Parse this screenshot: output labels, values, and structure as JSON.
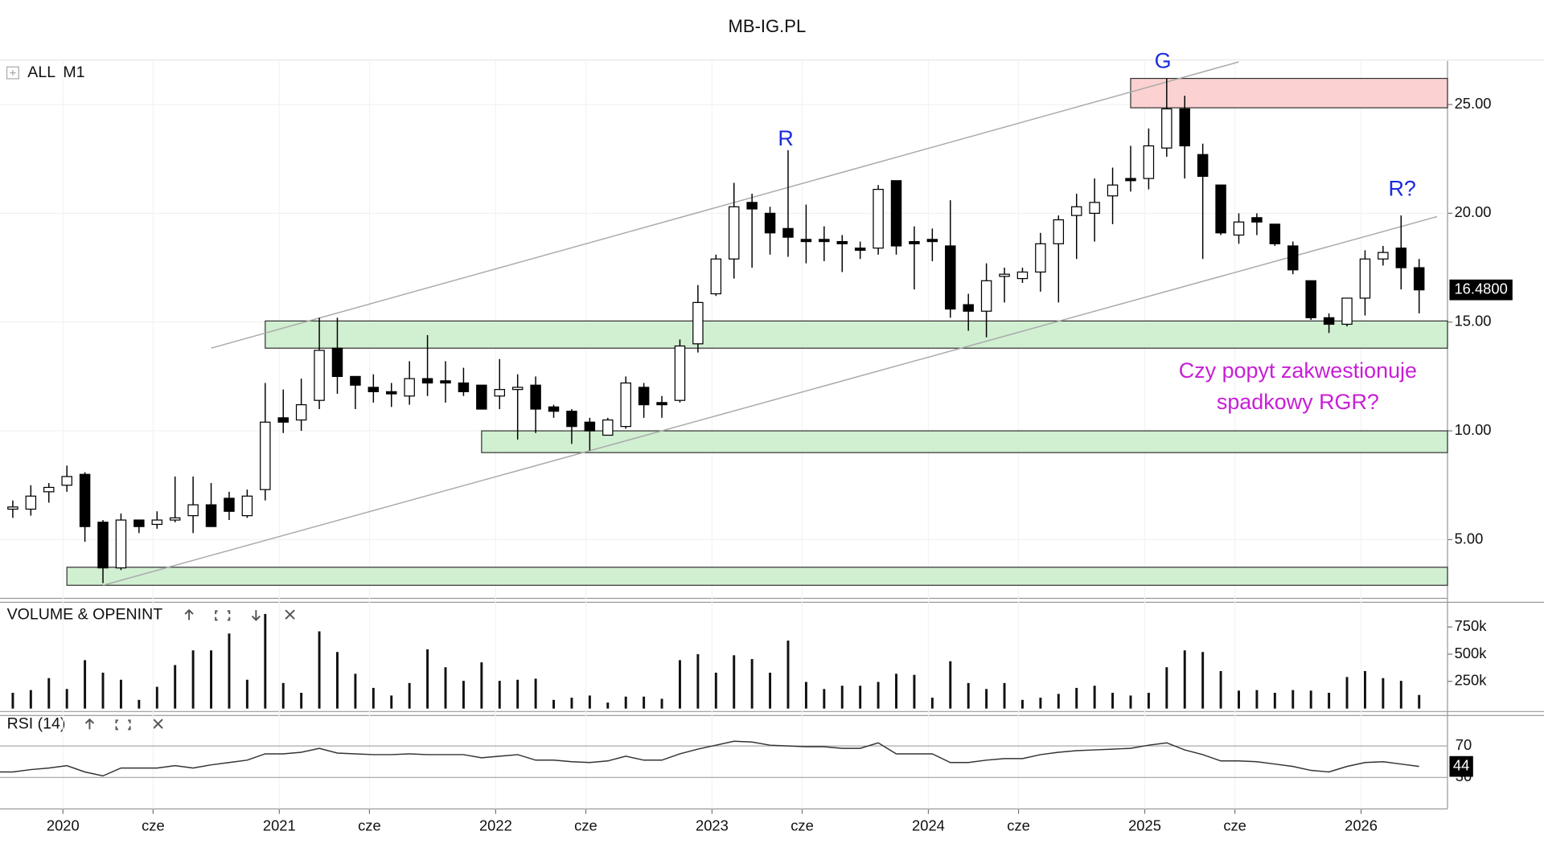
{
  "title": "MB-IG.PL",
  "instrument": {
    "scope": "ALL",
    "interval": "M1"
  },
  "chart_data": [
    {
      "type": "candlestick",
      "grid": true,
      "x": [
        "2019-10",
        "2019-11",
        "2019-12",
        "2020-01",
        "2020-02",
        "2020-03",
        "2020-04",
        "2020-05",
        "2020-06",
        "2020-07",
        "2020-08",
        "2020-09",
        "2020-10",
        "2020-11",
        "2020-12",
        "2021-01",
        "2021-02",
        "2021-03",
        "2021-04",
        "2021-05",
        "2021-06",
        "2021-07",
        "2021-08",
        "2021-09",
        "2021-10",
        "2021-11",
        "2021-12",
        "2022-01",
        "2022-02",
        "2022-03",
        "2022-04",
        "2022-05",
        "2022-06",
        "2022-07",
        "2022-08",
        "2022-09",
        "2022-10",
        "2022-11",
        "2022-12",
        "2023-01",
        "2023-02",
        "2023-03",
        "2023-04",
        "2023-05",
        "2023-06",
        "2023-07",
        "2023-08",
        "2023-09",
        "2023-10",
        "2023-11",
        "2023-12",
        "2024-01",
        "2024-02",
        "2024-03",
        "2024-04",
        "2024-05",
        "2024-06",
        "2024-07",
        "2024-08",
        "2024-09",
        "2024-10",
        "2024-11",
        "2024-12",
        "2025-01",
        "2025-02",
        "2025-03",
        "2025-04",
        "2025-05",
        "2025-06",
        "2025-07",
        "2025-08",
        "2025-09",
        "2025-10",
        "2025-11",
        "2025-12",
        "2026-01",
        "2026-02",
        "2026-03",
        "2026-04"
      ],
      "open": [
        6.4,
        6.4,
        7.2,
        7.5,
        8.0,
        5.8,
        3.7,
        5.9,
        5.7,
        5.9,
        6.1,
        6.6,
        6.9,
        6.1,
        7.3,
        10.6,
        10.5,
        11.4,
        13.8,
        12.5,
        12.0,
        11.8,
        11.6,
        12.4,
        12.3,
        12.2,
        12.1,
        11.6,
        11.9,
        12.1,
        11.1,
        10.9,
        10.4,
        9.8,
        10.2,
        12.0,
        11.3,
        11.4,
        14.0,
        16.3,
        17.9,
        20.5,
        20.0,
        19.3,
        18.8,
        18.8,
        18.7,
        18.4,
        18.4,
        21.5,
        18.7,
        18.8,
        18.5,
        15.8,
        15.5,
        17.1,
        17.0,
        17.3,
        18.6,
        19.9,
        20.0,
        20.8,
        21.6,
        21.6,
        23.0,
        24.8,
        22.7,
        21.3,
        19.0,
        19.8,
        19.5,
        18.5,
        16.9,
        15.2,
        14.9,
        16.1,
        17.9,
        18.4,
        17.5
      ],
      "high": [
        6.8,
        7.5,
        7.6,
        8.4,
        8.1,
        5.9,
        6.2,
        5.9,
        6.3,
        7.9,
        7.9,
        7.6,
        7.2,
        7.3,
        12.2,
        11.9,
        12.4,
        15.2,
        15.2,
        12.5,
        12.6,
        12.2,
        13.2,
        14.4,
        13.2,
        12.9,
        12.1,
        13.3,
        12.6,
        12.5,
        11.2,
        11.0,
        10.6,
        10.6,
        12.5,
        12.2,
        11.6,
        14.2,
        16.7,
        18.1,
        21.4,
        20.9,
        20.3,
        22.9,
        20.4,
        19.4,
        19.0,
        18.7,
        21.3,
        21.5,
        19.4,
        19.3,
        20.6,
        16.3,
        17.7,
        17.5,
        17.5,
        19.1,
        19.9,
        20.9,
        21.6,
        22.1,
        23.1,
        23.9,
        26.2,
        25.4,
        23.2,
        21.3,
        20.0,
        20.0,
        19.5,
        18.7,
        16.9,
        15.4,
        16.1,
        18.3,
        18.5,
        19.9,
        17.9
      ],
      "low": [
        6.0,
        6.1,
        6.7,
        7.2,
        4.9,
        3.0,
        3.6,
        5.3,
        5.5,
        5.8,
        5.3,
        5.6,
        5.9,
        6.0,
        6.8,
        9.9,
        10.0,
        11.0,
        11.7,
        11.0,
        11.3,
        11.1,
        11.2,
        11.6,
        11.3,
        11.6,
        11.0,
        11.0,
        9.6,
        9.9,
        10.6,
        9.4,
        9.1,
        9.8,
        10.1,
        10.6,
        10.6,
        11.3,
        13.6,
        16.2,
        17.0,
        17.5,
        18.1,
        18.0,
        17.7,
        17.8,
        17.3,
        17.9,
        18.1,
        18.1,
        16.5,
        17.8,
        15.2,
        14.6,
        14.3,
        15.9,
        16.8,
        16.4,
        15.9,
        17.9,
        18.7,
        19.5,
        21.0,
        21.1,
        22.6,
        21.6,
        17.9,
        19.0,
        18.6,
        19.0,
        18.5,
        17.2,
        15.1,
        14.5,
        14.8,
        15.3,
        17.6,
        16.5,
        15.4
      ],
      "close": [
        6.5,
        7.0,
        7.4,
        7.9,
        5.6,
        3.7,
        5.9,
        5.6,
        5.9,
        6.0,
        6.6,
        5.6,
        6.3,
        7.0,
        10.4,
        10.4,
        11.2,
        13.7,
        12.5,
        12.1,
        11.8,
        11.7,
        12.4,
        12.2,
        12.2,
        11.8,
        11.0,
        11.9,
        12.0,
        11.0,
        10.9,
        10.2,
        10.0,
        10.5,
        12.2,
        11.2,
        11.2,
        13.9,
        15.9,
        17.9,
        20.3,
        20.2,
        19.1,
        18.9,
        18.7,
        18.7,
        18.6,
        18.3,
        21.1,
        18.5,
        18.6,
        18.7,
        15.6,
        15.5,
        16.9,
        17.2,
        17.3,
        18.6,
        19.7,
        20.3,
        20.5,
        21.3,
        21.5,
        23.1,
        24.8,
        23.1,
        21.7,
        19.1,
        19.6,
        19.6,
        18.6,
        17.4,
        15.2,
        14.9,
        16.1,
        17.9,
        18.2,
        17.5,
        16.48
      ],
      "last_price": {
        "value": 16.48,
        "label": "16.4800"
      },
      "ylim": [
        2.3,
        27
      ],
      "yticks": [
        {
          "value": 5,
          "label": "5.00"
        },
        {
          "value": 10,
          "label": "10.00"
        },
        {
          "value": 15,
          "label": "15.00"
        },
        {
          "value": 20,
          "label": "20.00"
        },
        {
          "value": 25,
          "label": "25.00"
        }
      ],
      "xticks": [
        {
          "value": "2020-01",
          "label": "2020"
        },
        {
          "value": "2020-06",
          "label": "cze"
        },
        {
          "value": "2021-01",
          "label": "2021"
        },
        {
          "value": "2021-06",
          "label": "cze"
        },
        {
          "value": "2022-01",
          "label": "2022"
        },
        {
          "value": "2022-06",
          "label": "cze"
        },
        {
          "value": "2023-01",
          "label": "2023"
        },
        {
          "value": "2023-06",
          "label": "cze"
        },
        {
          "value": "2024-01",
          "label": "2024"
        },
        {
          "value": "2024-06",
          "label": "cze"
        },
        {
          "value": "2025-01",
          "label": "2025"
        },
        {
          "value": "2025-06",
          "label": "cze"
        },
        {
          "value": "2026-01",
          "label": "2026"
        }
      ],
      "zones": [
        {
          "from": "2020-12",
          "y": [
            13.8,
            15.05
          ],
          "color": "#c9ecc9"
        },
        {
          "from": "2021-12",
          "y": [
            9.0,
            10.0
          ],
          "color": "#c9ecc9"
        },
        {
          "from": "2020-01",
          "y": [
            2.9,
            3.73
          ],
          "color": "#c9ecc9"
        },
        {
          "from": "2024-12",
          "y": [
            24.85,
            26.2
          ],
          "color": "#fbc9c9"
        }
      ],
      "trend_lines": [
        {
          "x": [
            "2020-09",
            "2025-06"
          ],
          "y": [
            13.8,
            26.96
          ]
        },
        {
          "x": [
            "2020-03",
            "2026-05"
          ],
          "y": [
            2.9,
            19.85
          ]
        }
      ],
      "annotations": [
        "R",
        "G",
        "R?"
      ],
      "note": [
        "Czy popyt zakwestionuje",
        "spadkowy RGR?"
      ]
    },
    {
      "type": "bar",
      "title": "VOLUME & OPENINT",
      "color": "#111111",
      "values": [
        145000,
        170000,
        280000,
        180000,
        445000,
        330000,
        265000,
        80000,
        200000,
        400000,
        535000,
        535000,
        690000,
        265000,
        870000,
        235000,
        145000,
        710000,
        520000,
        320000,
        190000,
        120000,
        235000,
        545000,
        380000,
        255000,
        425000,
        255000,
        265000,
        275000,
        80000,
        100000,
        120000,
        55000,
        110000,
        110000,
        90000,
        445000,
        500000,
        330000,
        490000,
        455000,
        330000,
        625000,
        245000,
        180000,
        210000,
        210000,
        245000,
        320000,
        310000,
        100000,
        435000,
        235000,
        180000,
        235000,
        80000,
        100000,
        135000,
        190000,
        210000,
        145000,
        120000,
        145000,
        380000,
        535000,
        520000,
        345000,
        165000,
        170000,
        145000,
        170000,
        165000,
        145000,
        290000,
        345000,
        280000,
        255000,
        125000
      ],
      "ylim": [
        0,
        950000
      ],
      "yticks": [
        {
          "value": 250000,
          "label": "250k"
        },
        {
          "value": 500000,
          "label": "500k"
        },
        {
          "value": 750000,
          "label": "750k"
        }
      ]
    },
    {
      "type": "line",
      "title": "RSI (14)",
      "color": "#333333",
      "values": [
        37,
        40,
        42,
        45,
        37,
        32,
        42,
        42,
        42,
        45,
        42,
        46,
        49,
        52,
        60,
        60,
        62,
        67,
        61,
        60,
        59,
        59,
        60,
        59,
        59,
        59,
        55,
        57,
        59,
        52,
        52,
        50,
        49,
        51,
        57,
        52,
        52,
        60,
        66,
        71,
        76,
        75,
        71,
        70,
        69,
        69,
        67,
        67,
        74,
        60,
        60,
        60,
        49,
        49,
        52,
        54,
        54,
        59,
        62,
        64,
        65,
        66,
        67,
        71,
        74,
        65,
        59,
        51,
        51,
        50,
        47,
        44,
        39,
        37,
        44,
        49,
        50,
        47,
        44
      ],
      "ylim": [
        -10,
        108.75
      ],
      "yticks": [
        30,
        70
      ]
    }
  ]
}
